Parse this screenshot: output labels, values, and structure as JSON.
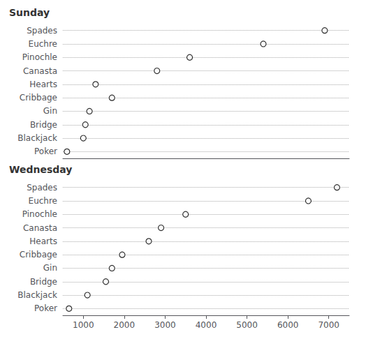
{
  "chart_data": [
    {
      "type": "scatter",
      "title": "Sunday",
      "categories": [
        "Spades",
        "Euchre",
        "Pinochle",
        "Canasta",
        "Hearts",
        "Cribbage",
        "Gin",
        "Bridge",
        "Blackjack",
        "Poker"
      ],
      "values": [
        6900,
        5400,
        3600,
        2800,
        1300,
        1700,
        1150,
        1050,
        1000,
        600
      ],
      "color": "black",
      "marker": "open_circle",
      "xlim": [
        500,
        7500
      ],
      "grid": true,
      "tick_labels": "y"
    },
    {
      "type": "scatter",
      "title": "Wednesday",
      "categories": [
        "Spades",
        "Euchre",
        "Pinochle",
        "Canasta",
        "Hearts",
        "Cribbage",
        "Gin",
        "Bridge",
        "Blackjack",
        "Poker"
      ],
      "values": [
        7200,
        6500,
        3500,
        2900,
        2600,
        1950,
        1700,
        1550,
        1100,
        650
      ],
      "color": "black",
      "marker": "open_circle",
      "xlim": [
        500,
        7500
      ],
      "xticks": [
        1000,
        2000,
        3000,
        4000,
        5000,
        6000,
        7000
      ],
      "grid": true
    }
  ]
}
